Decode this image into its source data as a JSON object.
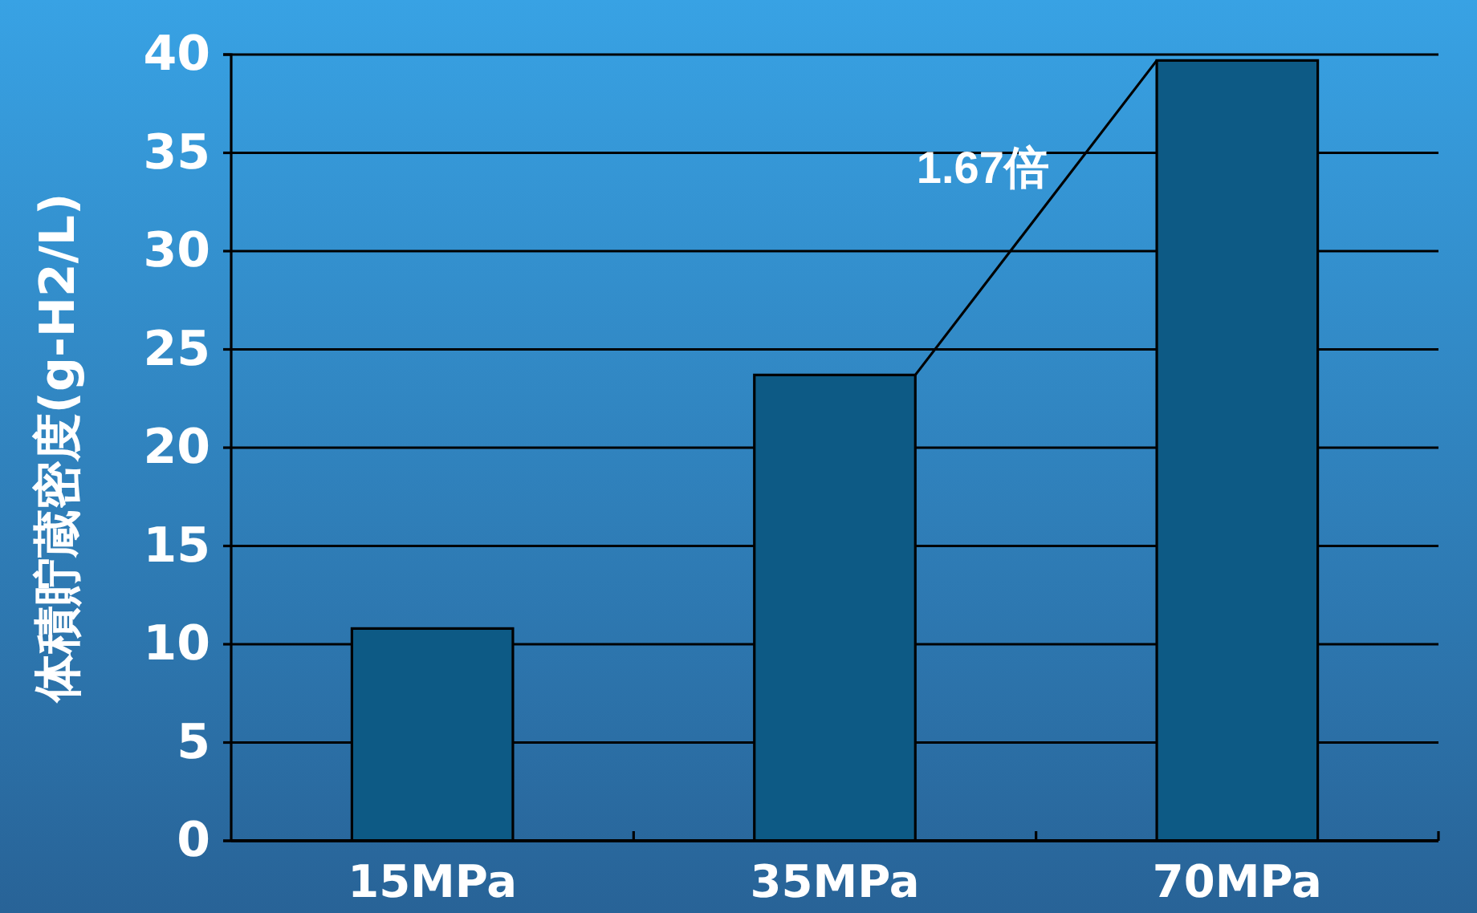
{
  "chart_data": {
    "type": "bar",
    "categories": [
      "15MPa",
      "35MPa",
      "70MPa"
    ],
    "values": [
      10.8,
      23.7,
      39.7
    ],
    "color": "#0d5a85",
    "ylabel": "体積貯蔵密度(g-H2/L)",
    "ylim": [
      0,
      40
    ],
    "yticks": [
      0,
      5,
      10,
      15,
      20,
      25,
      30,
      35,
      40
    ],
    "grid": "y",
    "annotations": [
      "1.67倍"
    ]
  }
}
